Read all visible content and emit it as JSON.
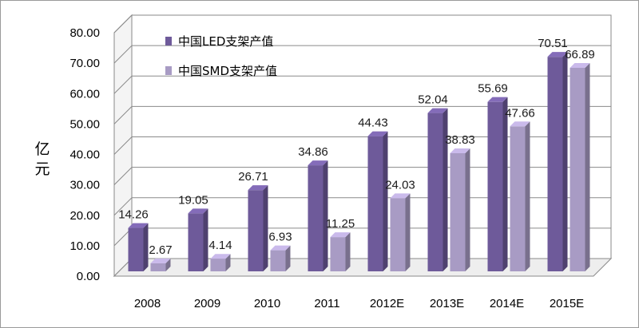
{
  "chart_data": {
    "type": "bar",
    "categories": [
      "2008",
      "2009",
      "2010",
      "2011",
      "2012E",
      "2013E",
      "2014E",
      "2015E"
    ],
    "series": [
      {
        "name": "中国LED支架产值",
        "values": [
          14.26,
          19.05,
          26.71,
          34.86,
          44.43,
          52.04,
          55.69,
          70.51
        ],
        "color": "#6e5a9a"
      },
      {
        "name": "中国SMD支架产值",
        "values": [
          2.67,
          4.14,
          6.93,
          11.25,
          24.03,
          38.83,
          47.66,
          66.89
        ],
        "color": "#a89bc4"
      }
    ],
    "value_labels": {
      "led": [
        "14.26",
        "19.05",
        "26.71",
        "34.86",
        "44.43",
        "52.04",
        "55.69",
        "70.51"
      ],
      "smd": [
        "2.67",
        "4.14",
        "6.93",
        "11.25",
        "24.03",
        "38.83",
        "47.66",
        "66.89"
      ]
    },
    "yticks": [
      "0.00",
      "10.00",
      "20.00",
      "30.00",
      "40.00",
      "50.00",
      "60.00",
      "70.00",
      "80.00"
    ],
    "ylabel": "亿元",
    "ylim": [
      0,
      80
    ],
    "grid": true,
    "legend_position": "top-left",
    "style": "3d"
  }
}
